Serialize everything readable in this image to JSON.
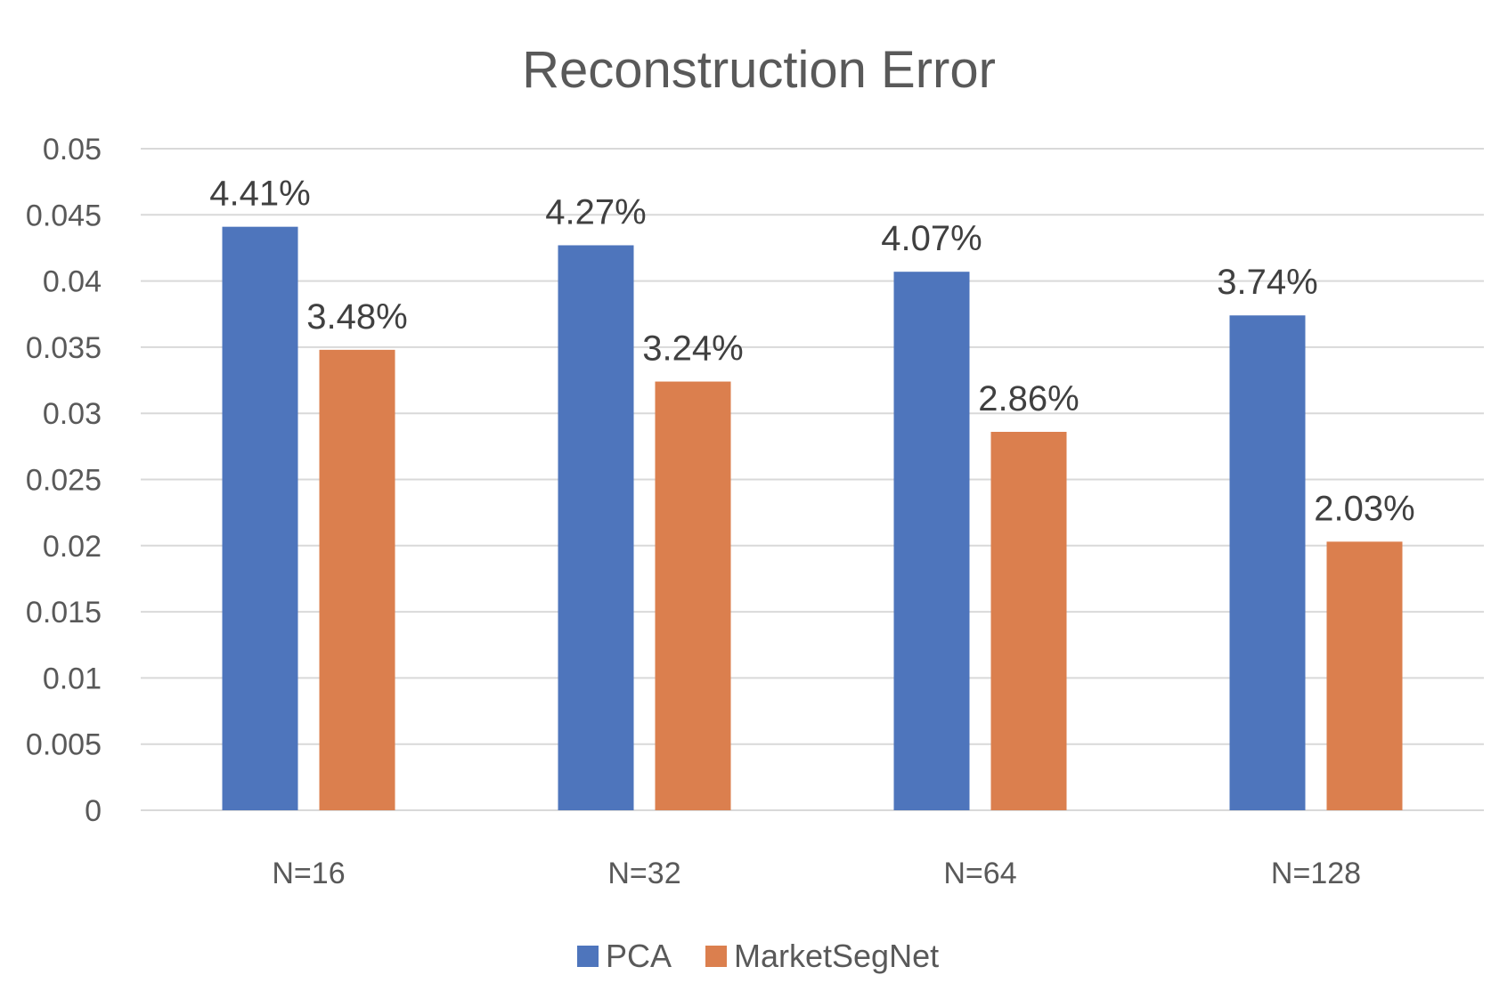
{
  "chart_data": {
    "type": "bar",
    "title": "Reconstruction Error",
    "categories": [
      "N=16",
      "N=32",
      "N=64",
      "N=128"
    ],
    "series": [
      {
        "name": "PCA",
        "color": "#4E75BC",
        "values": [
          0.0441,
          0.0427,
          0.0407,
          0.0374
        ],
        "data_labels": [
          "4.41%",
          "4.27%",
          "4.07%",
          "3.74%"
        ]
      },
      {
        "name": "MarketSegNet",
        "color": "#DB7F4E",
        "values": [
          0.0348,
          0.0324,
          0.0286,
          0.0203
        ],
        "data_labels": [
          "3.48%",
          "3.24%",
          "2.86%",
          "2.03%"
        ]
      }
    ],
    "yticks": [
      "0",
      "0.005",
      "0.01",
      "0.015",
      "0.02",
      "0.025",
      "0.03",
      "0.035",
      "0.04",
      "0.045",
      "0.05"
    ],
    "ylim": [
      0,
      0.05
    ],
    "grid": true,
    "legend_position": "bottom"
  }
}
